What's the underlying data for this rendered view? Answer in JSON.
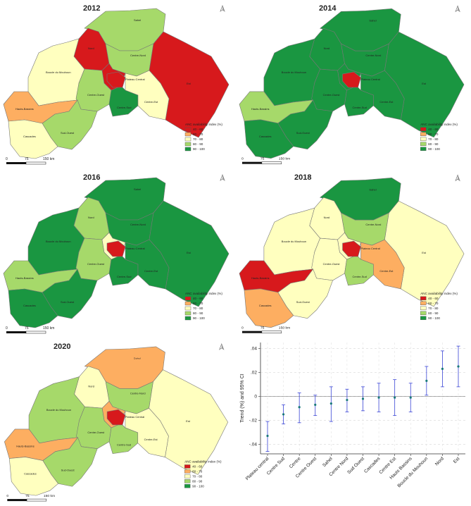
{
  "colors": {
    "c40": "#d7191c",
    "c60": "#fdae61",
    "c70": "#ffffbf",
    "c80": "#a6d96a",
    "c90": "#1a9641",
    "trend_point": "#1a7a7a",
    "trend_ci": "#3a45d6"
  },
  "legend": {
    "title": "ANC availability index (%)",
    "items": [
      {
        "label": "40 - 60",
        "color": "#d7191c"
      },
      {
        "label": "60 - 70",
        "color": "#fdae61"
      },
      {
        "label": "70 - 80",
        "color": "#ffffbf"
      },
      {
        "label": "80 - 90",
        "color": "#a6d96a"
      },
      {
        "label": "90 - 100",
        "color": "#1a9641"
      }
    ]
  },
  "scalebar": {
    "zero": "0",
    "mid": "75",
    "end": "150 km"
  },
  "north_arrow": "north-arrow-icon",
  "region_names": [
    "Sahel",
    "Nord",
    "Centre-Nord",
    "Boucle du Mouhoun",
    "Plateau Central",
    "Centre",
    "Est",
    "Centre-Ouest",
    "Centre-Est",
    "Centre-Sud",
    "Hauts-Bassins",
    "Sud-Ouest",
    "Cascades"
  ],
  "maps": [
    {
      "year": "2012",
      "classes": {
        "sahel": "c80",
        "nord": "c40",
        "centrenord": "c80",
        "boucle": "c70",
        "plateau": "c40",
        "centre": "c40",
        "est": "c40",
        "centreouest": "c80",
        "centreest": "c70",
        "centresud": "c90",
        "hauts": "c60",
        "sudouest": "c80",
        "cascades": "c70"
      }
    },
    {
      "year": "2014",
      "classes": {
        "sahel": "c90",
        "nord": "c90",
        "centrenord": "c90",
        "boucle": "c90",
        "plateau": "c90",
        "centre": "c40",
        "est": "c90",
        "centreouest": "c90",
        "centreest": "c90",
        "centresud": "c90",
        "hauts": "c80",
        "sudouest": "c90",
        "cascades": "c90"
      }
    },
    {
      "year": "2016",
      "classes": {
        "sahel": "c90",
        "nord": "c80",
        "centrenord": "c90",
        "boucle": "c90",
        "plateau": "c70",
        "centre": "c40",
        "est": "c90",
        "centreouest": "c80",
        "centreest": "c90",
        "centresud": "c90",
        "hauts": "c80",
        "sudouest": "c90",
        "cascades": "c90"
      }
    },
    {
      "year": "2018",
      "classes": {
        "sahel": "c90",
        "nord": "c70",
        "centrenord": "c80",
        "boucle": "c70",
        "plateau": "c70",
        "centre": "c40",
        "est": "c70",
        "centreouest": "c70",
        "centreest": "c60",
        "centresud": "c80",
        "hauts": "c40",
        "sudouest": "c70",
        "cascades": "c60"
      }
    },
    {
      "year": "2020",
      "classes": {
        "sahel": "c60",
        "nord": "c70",
        "centrenord": "c80",
        "boucle": "c80",
        "plateau": "c60",
        "centre": "c40",
        "est": "c70",
        "centreouest": "c80",
        "centreest": "c70",
        "centresud": "c80",
        "hauts": "c60",
        "sudouest": "c80",
        "cascades": "c70"
      }
    }
  ],
  "chart_data": {
    "type": "scatter",
    "ylabel": "Trend (%) and 95% CI",
    "ylim": [
      -0.048,
      0.045
    ],
    "yticks": [
      -0.04,
      -0.02,
      0,
      0.02,
      0.04
    ],
    "ytick_labels": [
      "-.04",
      "-.02",
      "0",
      ".02",
      ".04"
    ],
    "grid": true,
    "categories": [
      "Plateau central",
      "Centre Sud",
      "Centre",
      "Centre Ouest",
      "Sahel",
      "Centre Nord",
      "Sud Ouest",
      "Cascades",
      "Centre Est",
      "Hauts Bassins",
      "Boucle du Mouhoun",
      "Nord",
      "Est"
    ],
    "values": [
      -0.033,
      -0.015,
      -0.009,
      -0.007,
      -0.006,
      -0.003,
      -0.002,
      -0.001,
      -0.001,
      -0.001,
      0.013,
      0.023,
      0.025
    ],
    "ci_low": [
      -0.046,
      -0.023,
      -0.022,
      -0.016,
      -0.021,
      -0.013,
      -0.012,
      -0.013,
      -0.016,
      -0.013,
      0.001,
      0.008,
      0.008
    ],
    "ci_high": [
      -0.021,
      -0.007,
      0.003,
      0.001,
      0.008,
      0.006,
      0.008,
      0.011,
      0.014,
      0.011,
      0.025,
      0.038,
      0.042
    ]
  }
}
